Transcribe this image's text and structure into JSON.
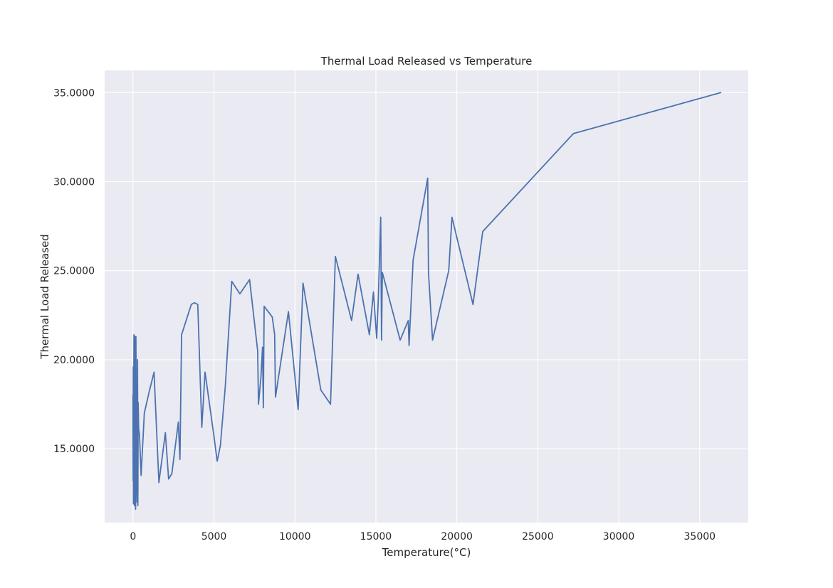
{
  "chart_data": {
    "type": "line",
    "title": "Thermal Load Released vs Temperature",
    "xlabel": "Temperature(°C)",
    "ylabel": "Thermal Load Released",
    "xlim": [
      -1750,
      38000
    ],
    "ylim": [
      10.85,
      36.25
    ],
    "x_ticks": [
      0,
      5000,
      10000,
      15000,
      20000,
      25000,
      30000,
      35000
    ],
    "x_tick_labels": [
      "0",
      "5000",
      "10000",
      "15000",
      "20000",
      "25000",
      "30000",
      "35000"
    ],
    "y_ticks": [
      15,
      20,
      25,
      30,
      35
    ],
    "y_tick_labels": [
      "15.0000",
      "20.0000",
      "25.0000",
      "30.0000",
      "35.0000"
    ],
    "grid": true,
    "background_color": "#EAEAF2",
    "grid_color": "#FFFFFF",
    "series": [
      {
        "color": "#4C72B0",
        "x": [
          0,
          10,
          20,
          30,
          40,
          60,
          80,
          100,
          120,
          140,
          160,
          180,
          200,
          220,
          250,
          280,
          300,
          320,
          350,
          400,
          500,
          700,
          1000,
          1300,
          1600,
          2000,
          2200,
          2400,
          2800,
          2900,
          3000,
          3600,
          3800,
          4000,
          4250,
          4450,
          5000,
          5200,
          5400,
          5700,
          6100,
          6600,
          7200,
          7700,
          7750,
          7900,
          8000,
          8050,
          8100,
          8600,
          8750,
          8800,
          9600,
          10200,
          10500,
          11600,
          12200,
          12500,
          13500,
          13900,
          14600,
          14850,
          15050,
          15150,
          15300,
          15350,
          15400,
          16500,
          17000,
          17050,
          17300,
          18200,
          18250,
          18500,
          19500,
          19700,
          21000,
          21600,
          27200,
          36300
        ],
        "y": [
          18.0,
          13.2,
          19.6,
          11.9,
          14.5,
          21.4,
          13.8,
          11.8,
          21.3,
          15.1,
          11.6,
          21.3,
          17.2,
          13.8,
          12.0,
          20.0,
          11.8,
          17.6,
          16.1,
          15.8,
          13.5,
          17.0,
          18.2,
          19.3,
          13.1,
          15.9,
          13.3,
          13.6,
          16.5,
          14.4,
          21.4,
          23.1,
          23.2,
          23.1,
          16.2,
          19.3,
          15.7,
          14.3,
          15.2,
          18.5,
          24.4,
          23.7,
          24.5,
          20.5,
          17.5,
          19.0,
          20.7,
          17.3,
          23.0,
          22.4,
          21.4,
          17.9,
          22.7,
          17.2,
          24.3,
          18.3,
          17.5,
          25.8,
          22.2,
          24.8,
          21.4,
          23.8,
          21.2,
          23.4,
          28.0,
          21.1,
          24.9,
          21.1,
          22.2,
          20.8,
          25.6,
          30.2,
          24.9,
          21.1,
          25.0,
          28.0,
          23.1,
          27.2,
          32.7,
          35.0
        ]
      }
    ]
  }
}
